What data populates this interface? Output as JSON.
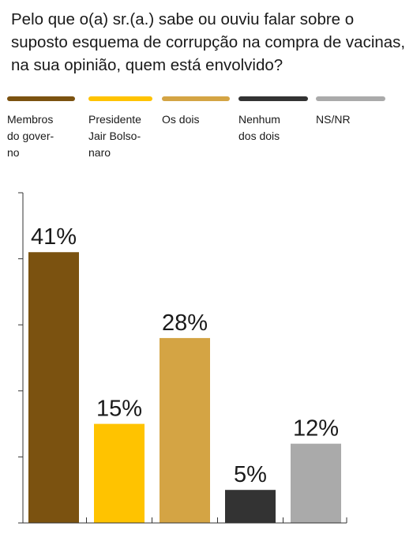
{
  "question": "Pelo que o(a) sr.(a.) sabe ou ouviu falar sobre o suposto esquema de corrupção na compra de vacinas, na sua opinião, quem está envolvido?",
  "legend": [
    {
      "label": "Membros\ndo gover-\nno",
      "color": "#7b5210"
    },
    {
      "label": "Presidente\nJair Bolso-\nnaro",
      "color": "#ffc300"
    },
    {
      "label": "Os dois",
      "color": "#d4a444"
    },
    {
      "label": "Nenhum\ndos dois",
      "color": "#333333"
    },
    {
      "label": "NS/NR",
      "color": "#aaaaaa"
    }
  ],
  "chart_data": {
    "type": "bar",
    "categories": [
      "Membros do governo",
      "Presidente Jair Bolsonaro",
      "Os dois",
      "Nenhum dos dois",
      "NS/NR"
    ],
    "values": [
      41,
      15,
      28,
      5,
      12
    ],
    "value_labels": [
      "41%",
      "15%",
      "28%",
      "5%",
      "12%"
    ],
    "colors": [
      "#7b5210",
      "#ffc300",
      "#d4a444",
      "#333333",
      "#aaaaaa"
    ],
    "ylim": [
      0,
      50
    ],
    "grid": false,
    "legend_position": "top"
  }
}
